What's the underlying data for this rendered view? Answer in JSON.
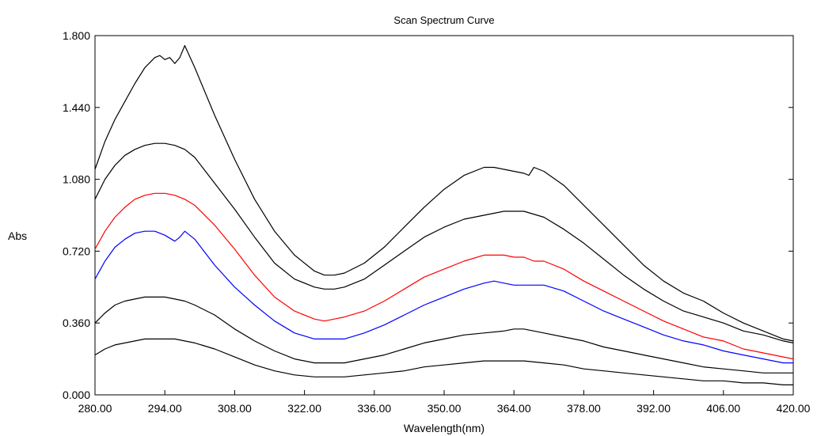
{
  "chart_data": {
    "type": "line",
    "title": "Scan Spectrum Curve",
    "xlabel": "Wavelength(nm)",
    "ylabel": "Abs",
    "xlim": [
      280,
      420
    ],
    "ylim": [
      0,
      1.8
    ],
    "x_ticks": [
      "280.00",
      "294.00",
      "308.00",
      "322.00",
      "336.00",
      "350.00",
      "364.00",
      "378.00",
      "392.00",
      "406.00",
      "420.00"
    ],
    "y_ticks": [
      "0.000",
      "0.360",
      "0.720",
      "1.080",
      "1.440",
      "1.800"
    ],
    "grid": false,
    "series": [
      {
        "color": "#000000",
        "x": [
          280,
          282,
          284,
          286,
          288,
          290,
          292,
          293,
          294,
          295,
          296,
          297,
          298,
          300,
          304,
          308,
          312,
          316,
          320,
          324,
          326,
          328,
          330,
          334,
          338,
          342,
          346,
          350,
          354,
          358,
          360,
          362,
          364,
          366,
          367,
          368,
          370,
          374,
          378,
          382,
          386,
          390,
          394,
          398,
          402,
          406,
          410,
          414,
          418,
          420
        ],
        "y": [
          1.13,
          1.27,
          1.38,
          1.47,
          1.56,
          1.64,
          1.69,
          1.7,
          1.68,
          1.69,
          1.66,
          1.69,
          1.75,
          1.64,
          1.4,
          1.18,
          0.98,
          0.82,
          0.7,
          0.62,
          0.6,
          0.6,
          0.61,
          0.66,
          0.74,
          0.84,
          0.94,
          1.03,
          1.1,
          1.14,
          1.14,
          1.13,
          1.12,
          1.11,
          1.1,
          1.14,
          1.12,
          1.05,
          0.95,
          0.85,
          0.75,
          0.65,
          0.57,
          0.51,
          0.47,
          0.41,
          0.36,
          0.32,
          0.28,
          0.27
        ]
      },
      {
        "color": "#000000",
        "x": [
          280,
          282,
          284,
          286,
          288,
          290,
          292,
          294,
          296,
          298,
          300,
          304,
          308,
          312,
          316,
          320,
          324,
          326,
          328,
          330,
          334,
          338,
          342,
          346,
          350,
          354,
          358,
          360,
          362,
          364,
          366,
          370,
          374,
          378,
          382,
          386,
          390,
          394,
          398,
          402,
          406,
          410,
          414,
          418,
          420
        ],
        "y": [
          0.98,
          1.08,
          1.15,
          1.2,
          1.23,
          1.25,
          1.26,
          1.26,
          1.25,
          1.23,
          1.19,
          1.06,
          0.93,
          0.79,
          0.66,
          0.58,
          0.54,
          0.53,
          0.53,
          0.54,
          0.58,
          0.65,
          0.72,
          0.79,
          0.84,
          0.88,
          0.9,
          0.91,
          0.92,
          0.92,
          0.92,
          0.89,
          0.83,
          0.76,
          0.68,
          0.6,
          0.53,
          0.47,
          0.42,
          0.39,
          0.36,
          0.32,
          0.3,
          0.27,
          0.26
        ]
      },
      {
        "color": "#ff0000",
        "x": [
          280,
          282,
          284,
          286,
          288,
          290,
          292,
          294,
          296,
          298,
          300,
          304,
          308,
          312,
          316,
          320,
          324,
          326,
          328,
          330,
          334,
          338,
          342,
          346,
          350,
          354,
          358,
          360,
          362,
          364,
          366,
          367,
          368,
          370,
          374,
          378,
          382,
          386,
          390,
          394,
          398,
          402,
          406,
          410,
          414,
          418,
          420
        ],
        "y": [
          0.73,
          0.82,
          0.89,
          0.94,
          0.98,
          1.0,
          1.01,
          1.01,
          1.0,
          0.98,
          0.95,
          0.85,
          0.73,
          0.6,
          0.49,
          0.42,
          0.38,
          0.37,
          0.38,
          0.39,
          0.42,
          0.47,
          0.53,
          0.59,
          0.63,
          0.67,
          0.7,
          0.7,
          0.7,
          0.69,
          0.69,
          0.68,
          0.67,
          0.67,
          0.63,
          0.57,
          0.52,
          0.47,
          0.42,
          0.37,
          0.33,
          0.29,
          0.27,
          0.23,
          0.21,
          0.19,
          0.18
        ]
      },
      {
        "color": "#0000ff",
        "x": [
          280,
          282,
          284,
          286,
          288,
          290,
          292,
          294,
          296,
          297,
          298,
          300,
          304,
          308,
          312,
          316,
          320,
          324,
          326,
          328,
          330,
          334,
          338,
          342,
          346,
          350,
          354,
          358,
          360,
          362,
          364,
          366,
          370,
          374,
          378,
          382,
          386,
          390,
          394,
          398,
          402,
          406,
          410,
          414,
          418,
          420
        ],
        "y": [
          0.58,
          0.67,
          0.74,
          0.78,
          0.81,
          0.82,
          0.82,
          0.8,
          0.77,
          0.79,
          0.82,
          0.78,
          0.65,
          0.54,
          0.45,
          0.37,
          0.31,
          0.28,
          0.28,
          0.28,
          0.28,
          0.31,
          0.35,
          0.4,
          0.45,
          0.49,
          0.53,
          0.56,
          0.57,
          0.56,
          0.55,
          0.55,
          0.55,
          0.52,
          0.47,
          0.42,
          0.38,
          0.34,
          0.3,
          0.27,
          0.25,
          0.22,
          0.2,
          0.18,
          0.16,
          0.16
        ]
      },
      {
        "color": "#000000",
        "x": [
          280,
          282,
          284,
          286,
          288,
          290,
          292,
          294,
          296,
          298,
          300,
          304,
          308,
          312,
          316,
          320,
          324,
          326,
          328,
          330,
          334,
          338,
          342,
          346,
          350,
          354,
          358,
          362,
          364,
          366,
          370,
          374,
          378,
          382,
          386,
          390,
          394,
          398,
          402,
          406,
          410,
          414,
          418,
          420
        ],
        "y": [
          0.36,
          0.41,
          0.45,
          0.47,
          0.48,
          0.49,
          0.49,
          0.49,
          0.48,
          0.47,
          0.45,
          0.4,
          0.33,
          0.27,
          0.22,
          0.18,
          0.16,
          0.16,
          0.16,
          0.16,
          0.18,
          0.2,
          0.23,
          0.26,
          0.28,
          0.3,
          0.31,
          0.32,
          0.33,
          0.33,
          0.31,
          0.29,
          0.27,
          0.24,
          0.22,
          0.2,
          0.18,
          0.16,
          0.14,
          0.13,
          0.12,
          0.11,
          0.11,
          0.11
        ]
      },
      {
        "color": "#000000",
        "x": [
          280,
          282,
          284,
          286,
          288,
          290,
          292,
          294,
          296,
          298,
          300,
          304,
          308,
          312,
          316,
          320,
          324,
          326,
          328,
          330,
          334,
          338,
          342,
          346,
          350,
          354,
          358,
          362,
          364,
          366,
          370,
          374,
          378,
          382,
          386,
          390,
          394,
          398,
          402,
          406,
          410,
          414,
          418,
          420
        ],
        "y": [
          0.2,
          0.23,
          0.25,
          0.26,
          0.27,
          0.28,
          0.28,
          0.28,
          0.28,
          0.27,
          0.26,
          0.23,
          0.19,
          0.15,
          0.12,
          0.1,
          0.09,
          0.09,
          0.09,
          0.09,
          0.1,
          0.11,
          0.12,
          0.14,
          0.15,
          0.16,
          0.17,
          0.17,
          0.17,
          0.17,
          0.16,
          0.15,
          0.13,
          0.12,
          0.11,
          0.1,
          0.09,
          0.08,
          0.07,
          0.07,
          0.06,
          0.06,
          0.05,
          0.05
        ]
      }
    ]
  }
}
